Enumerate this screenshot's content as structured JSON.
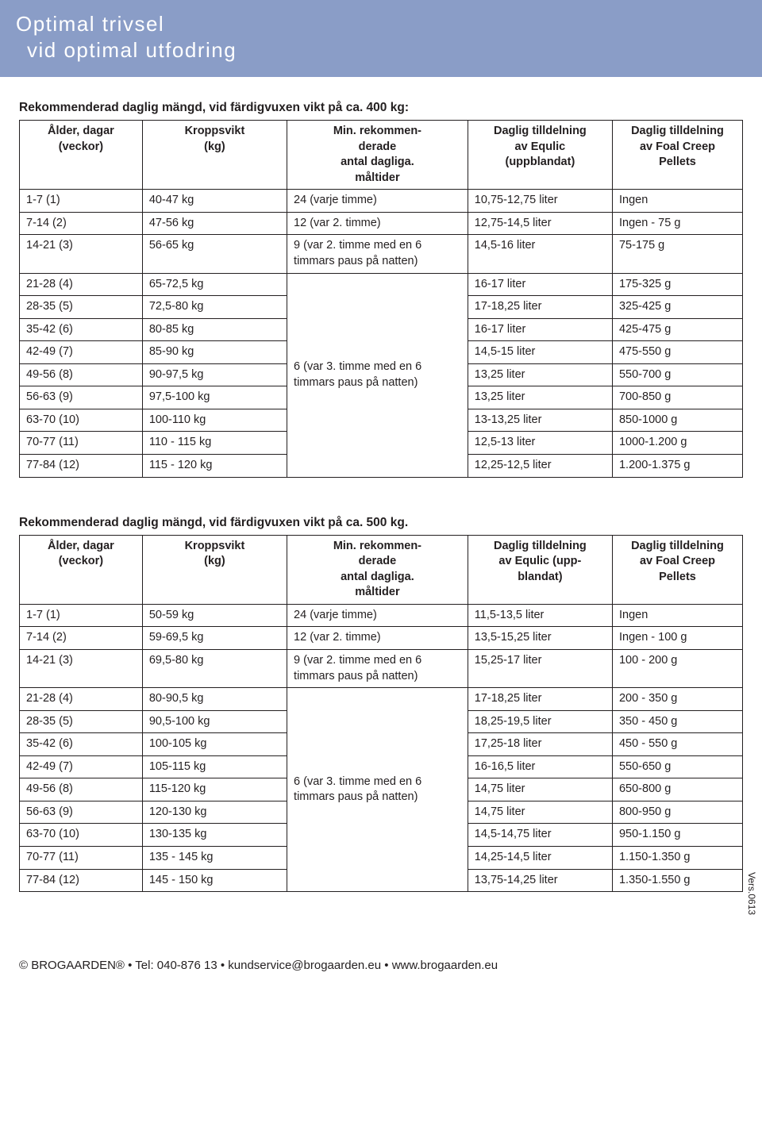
{
  "header": {
    "line1": "Optimal trivsel",
    "line2": "vid optimal utfodring"
  },
  "section400": {
    "title": "Rekommenderad daglig mängd, vid färdigvuxen vikt på ca. 400 kg:",
    "columns": [
      "Ålder, dagar\n(veckor)",
      "Kroppsvikt\n(kg)",
      "Min. rekommen-\nderade\nantal dagliga.\nmåltider",
      "Daglig tilldelning\nav Equlic\n(uppblandat)",
      "Daglig tilldelning\nav Foal Creep\nPellets"
    ],
    "rows": [
      {
        "age": "1-7 (1)",
        "kg": "40-47 kg",
        "meals": "24 (varje timme)",
        "equlic": "10,75-12,75 liter",
        "pellets": "Ingen"
      },
      {
        "age": "7-14 (2)",
        "kg": "47-56 kg",
        "meals": "12 (var 2. timme)",
        "equlic": "12,75-14,5 liter",
        "pellets": "Ingen - 75 g"
      },
      {
        "age": "14-21 (3)",
        "kg": "56-65 kg",
        "meals": "9 (var 2. timme med en 6 timmars paus på natten)",
        "equlic": "14,5-16 liter",
        "pellets": "75-175 g"
      },
      {
        "age": "21-28 (4)",
        "kg": "65-72,5 kg",
        "equlic": "16-17 liter",
        "pellets": "175-325 g"
      },
      {
        "age": "28-35 (5)",
        "kg": "72,5-80 kg",
        "equlic": "17-18,25 liter",
        "pellets": "325-425 g"
      },
      {
        "age": "35-42 (6)",
        "kg": "80-85 kg",
        "equlic": "16-17 liter",
        "pellets": "425-475 g"
      },
      {
        "age": "42-49 (7)",
        "kg": "85-90 kg",
        "meals": "6 (var 3. timme med en 6 timmars paus på natten)",
        "equlic": "14,5-15 liter",
        "pellets": "475-550 g"
      },
      {
        "age": "49-56 (8)",
        "kg": "90-97,5 kg",
        "equlic": "13,25 liter",
        "pellets": "550-700 g"
      },
      {
        "age": "56-63 (9)",
        "kg": "97,5-100 kg",
        "equlic": "13,25 liter",
        "pellets": "700-850 g"
      },
      {
        "age": "63-70 (10)",
        "kg": "100-110 kg",
        "equlic": "13-13,25 liter",
        "pellets": "850-1000 g"
      },
      {
        "age": "70-77 (11)",
        "kg": "110 - 115 kg",
        "equlic": "12,5-13 liter",
        "pellets": "1000-1.200 g"
      },
      {
        "age": "77-84 (12)",
        "kg": "115 - 120 kg",
        "equlic": "12,25-12,5 liter",
        "pellets": "1.200-1.375 g"
      }
    ],
    "merge1_rowspan": 1,
    "merge2_start": 3,
    "merge2_rowspan": 9
  },
  "section500": {
    "title": "Rekommenderad daglig mängd, vid färdigvuxen vikt på ca. 500 kg.",
    "columns": [
      "Ålder, dagar\n(veckor)",
      "Kroppsvikt\n(kg)",
      "Min. rekommen-\nderade\nantal dagliga.\nmåltider",
      "Daglig tilldelning\nav Equlic (upp-\nblandat)",
      "Daglig tilldelning\nav  Foal Creep\nPellets"
    ],
    "rows": [
      {
        "age": "1-7 (1)",
        "kg": "50-59 kg",
        "meals": "24 (varje timme)",
        "equlic": "11,5-13,5 liter",
        "pellets": "Ingen"
      },
      {
        "age": "7-14 (2)",
        "kg": "59-69,5 kg",
        "meals": "12 (var 2. timme)",
        "equlic": "13,5-15,25 liter",
        "pellets": "Ingen - 100 g"
      },
      {
        "age": "14-21 (3)",
        "kg": "69,5-80 kg",
        "meals": "9 (var 2. timme med en 6 timmars paus på natten)",
        "equlic": "15,25-17 liter",
        "pellets": "100 - 200 g"
      },
      {
        "age": "21-28 (4)",
        "kg": "80-90,5 kg",
        "equlic": "17-18,25 liter",
        "pellets": "200 - 350 g"
      },
      {
        "age": "28-35 (5)",
        "kg": "90,5-100 kg",
        "equlic": "18,25-19,5 liter",
        "pellets": "350 - 450 g"
      },
      {
        "age": "35-42 (6)",
        "kg": "100-105 kg",
        "equlic": "17,25-18 liter",
        "pellets": "450 - 550 g"
      },
      {
        "age": "42-49 (7)",
        "kg": "105-115 kg",
        "meals": "6 (var 3. timme med en 6 timmars paus på natten)",
        "equlic": "16-16,5 liter",
        "pellets": "550-650 g"
      },
      {
        "age": "49-56 (8)",
        "kg": "115-120 kg",
        "equlic": "14,75 liter",
        "pellets": "650-800 g"
      },
      {
        "age": "56-63 (9)",
        "kg": "120-130 kg",
        "equlic": "14,75 liter",
        "pellets": "800-950 g"
      },
      {
        "age": "63-70 (10)",
        "kg": "130-135 kg",
        "equlic": "14,5-14,75 liter",
        "pellets": "950-1.150 g"
      },
      {
        "age": "70-77 (11)",
        "kg": "135 - 145 kg",
        "equlic": "14,25-14,5 liter",
        "pellets": "1.150-1.350 g"
      },
      {
        "age": "77-84 (12)",
        "kg": "145 - 150 kg",
        "equlic": "13,75-14,25 liter",
        "pellets": "1.350-1.550 g"
      }
    ],
    "merge2_start": 3,
    "merge2_rowspan": 9
  },
  "footer": {
    "text": "© BROGAARDEN® • Tel: 040-876 13 • kundservice@brogaarden.eu • www.brogaarden.eu"
  },
  "version": "Vers.0613",
  "colors": {
    "header_bg": "#8a9dc7",
    "header_fg": "#ffffff",
    "border": "#231f20",
    "text": "#231f20",
    "page_bg": "#ffffff"
  }
}
